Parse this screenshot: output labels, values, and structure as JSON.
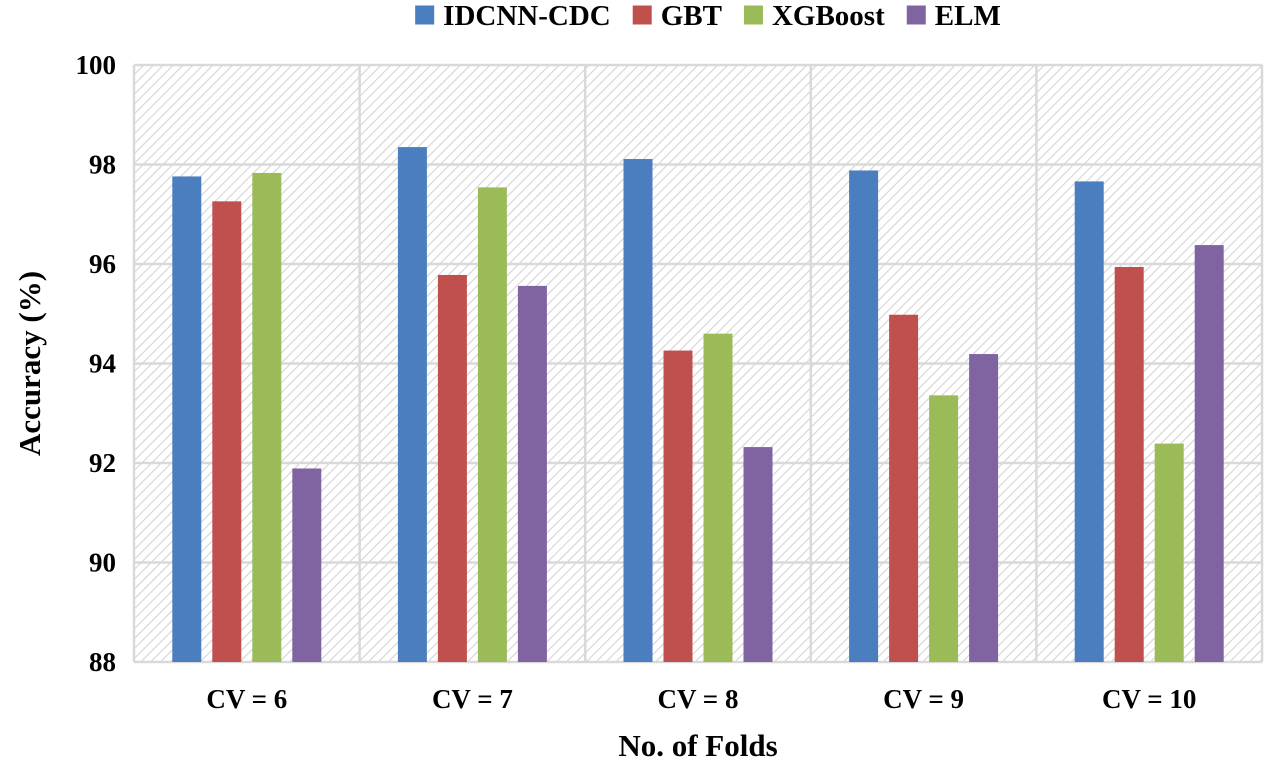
{
  "chart_data": {
    "type": "bar",
    "title": "",
    "xlabel": "No. of Folds",
    "ylabel": "Accuracy (%)",
    "categories": [
      "CV = 6",
      "CV = 7",
      "CV = 8",
      "CV = 9",
      "CV = 10"
    ],
    "ylim": [
      88,
      100
    ],
    "yticks": [
      88,
      90,
      92,
      94,
      96,
      98,
      100
    ],
    "grid": true,
    "legend_position": "top",
    "series": [
      {
        "name": "IDCNN-CDC",
        "color": "#4a7ebf",
        "values": [
          97.76,
          98.35,
          98.11,
          97.88,
          97.66
        ]
      },
      {
        "name": "GBT",
        "color": "#c0504d",
        "values": [
          97.26,
          95.78,
          94.26,
          94.98,
          95.94
        ]
      },
      {
        "name": "XGBoost",
        "color": "#9bbb59",
        "values": [
          97.83,
          97.54,
          94.6,
          93.36,
          92.39
        ]
      },
      {
        "name": "ELM",
        "color": "#8064a2",
        "values": [
          91.89,
          95.56,
          92.32,
          94.19,
          96.38
        ]
      }
    ]
  }
}
